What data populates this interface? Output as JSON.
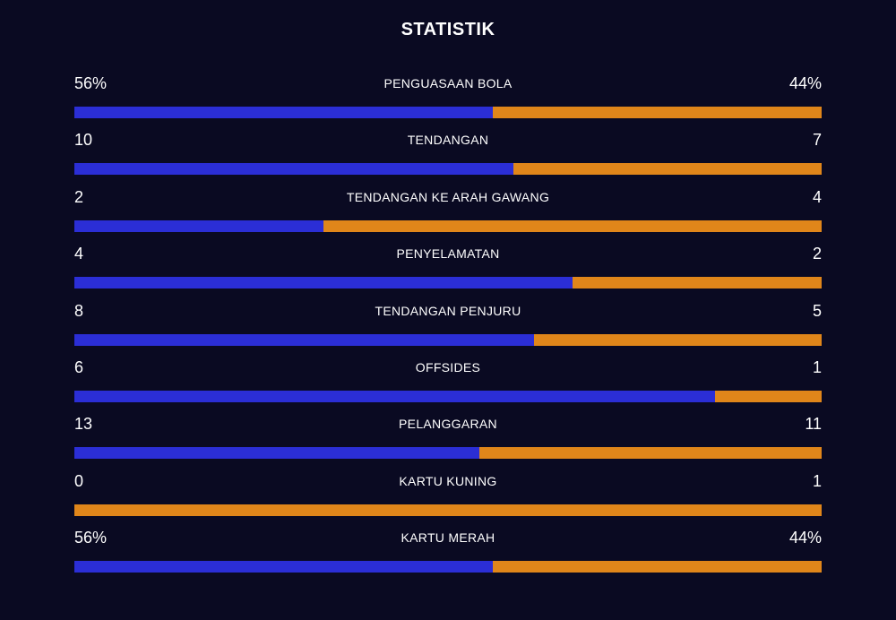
{
  "title": "STATISTIK",
  "colors": {
    "background": "#0a0a22",
    "home": "#2b2ed6",
    "away": "#e0861a"
  },
  "stats": [
    {
      "label": "PENGUASAAN BOLA",
      "home": "56%",
      "away": "44%",
      "home_share": 0.56
    },
    {
      "label": "TENDANGAN",
      "home": "10",
      "away": "7",
      "home_share": 0.588
    },
    {
      "label": "TENDANGAN KE ARAH GAWANG",
      "home": "2",
      "away": "4",
      "home_share": 0.333
    },
    {
      "label": "PENYELAMATAN",
      "home": "4",
      "away": "2",
      "home_share": 0.667
    },
    {
      "label": "TENDANGAN PENJURU",
      "home": "8",
      "away": "5",
      "home_share": 0.615
    },
    {
      "label": "OFFSIDES",
      "home": "6",
      "away": "1",
      "home_share": 0.857
    },
    {
      "label": "PELANGGARAN",
      "home": "13",
      "away": "11",
      "home_share": 0.542
    },
    {
      "label": "KARTU KUNING",
      "home": "0",
      "away": "1",
      "home_share": 0.0
    },
    {
      "label": "KARTU MERAH",
      "home": "56%",
      "away": "44%",
      "home_share": 0.56
    }
  ]
}
